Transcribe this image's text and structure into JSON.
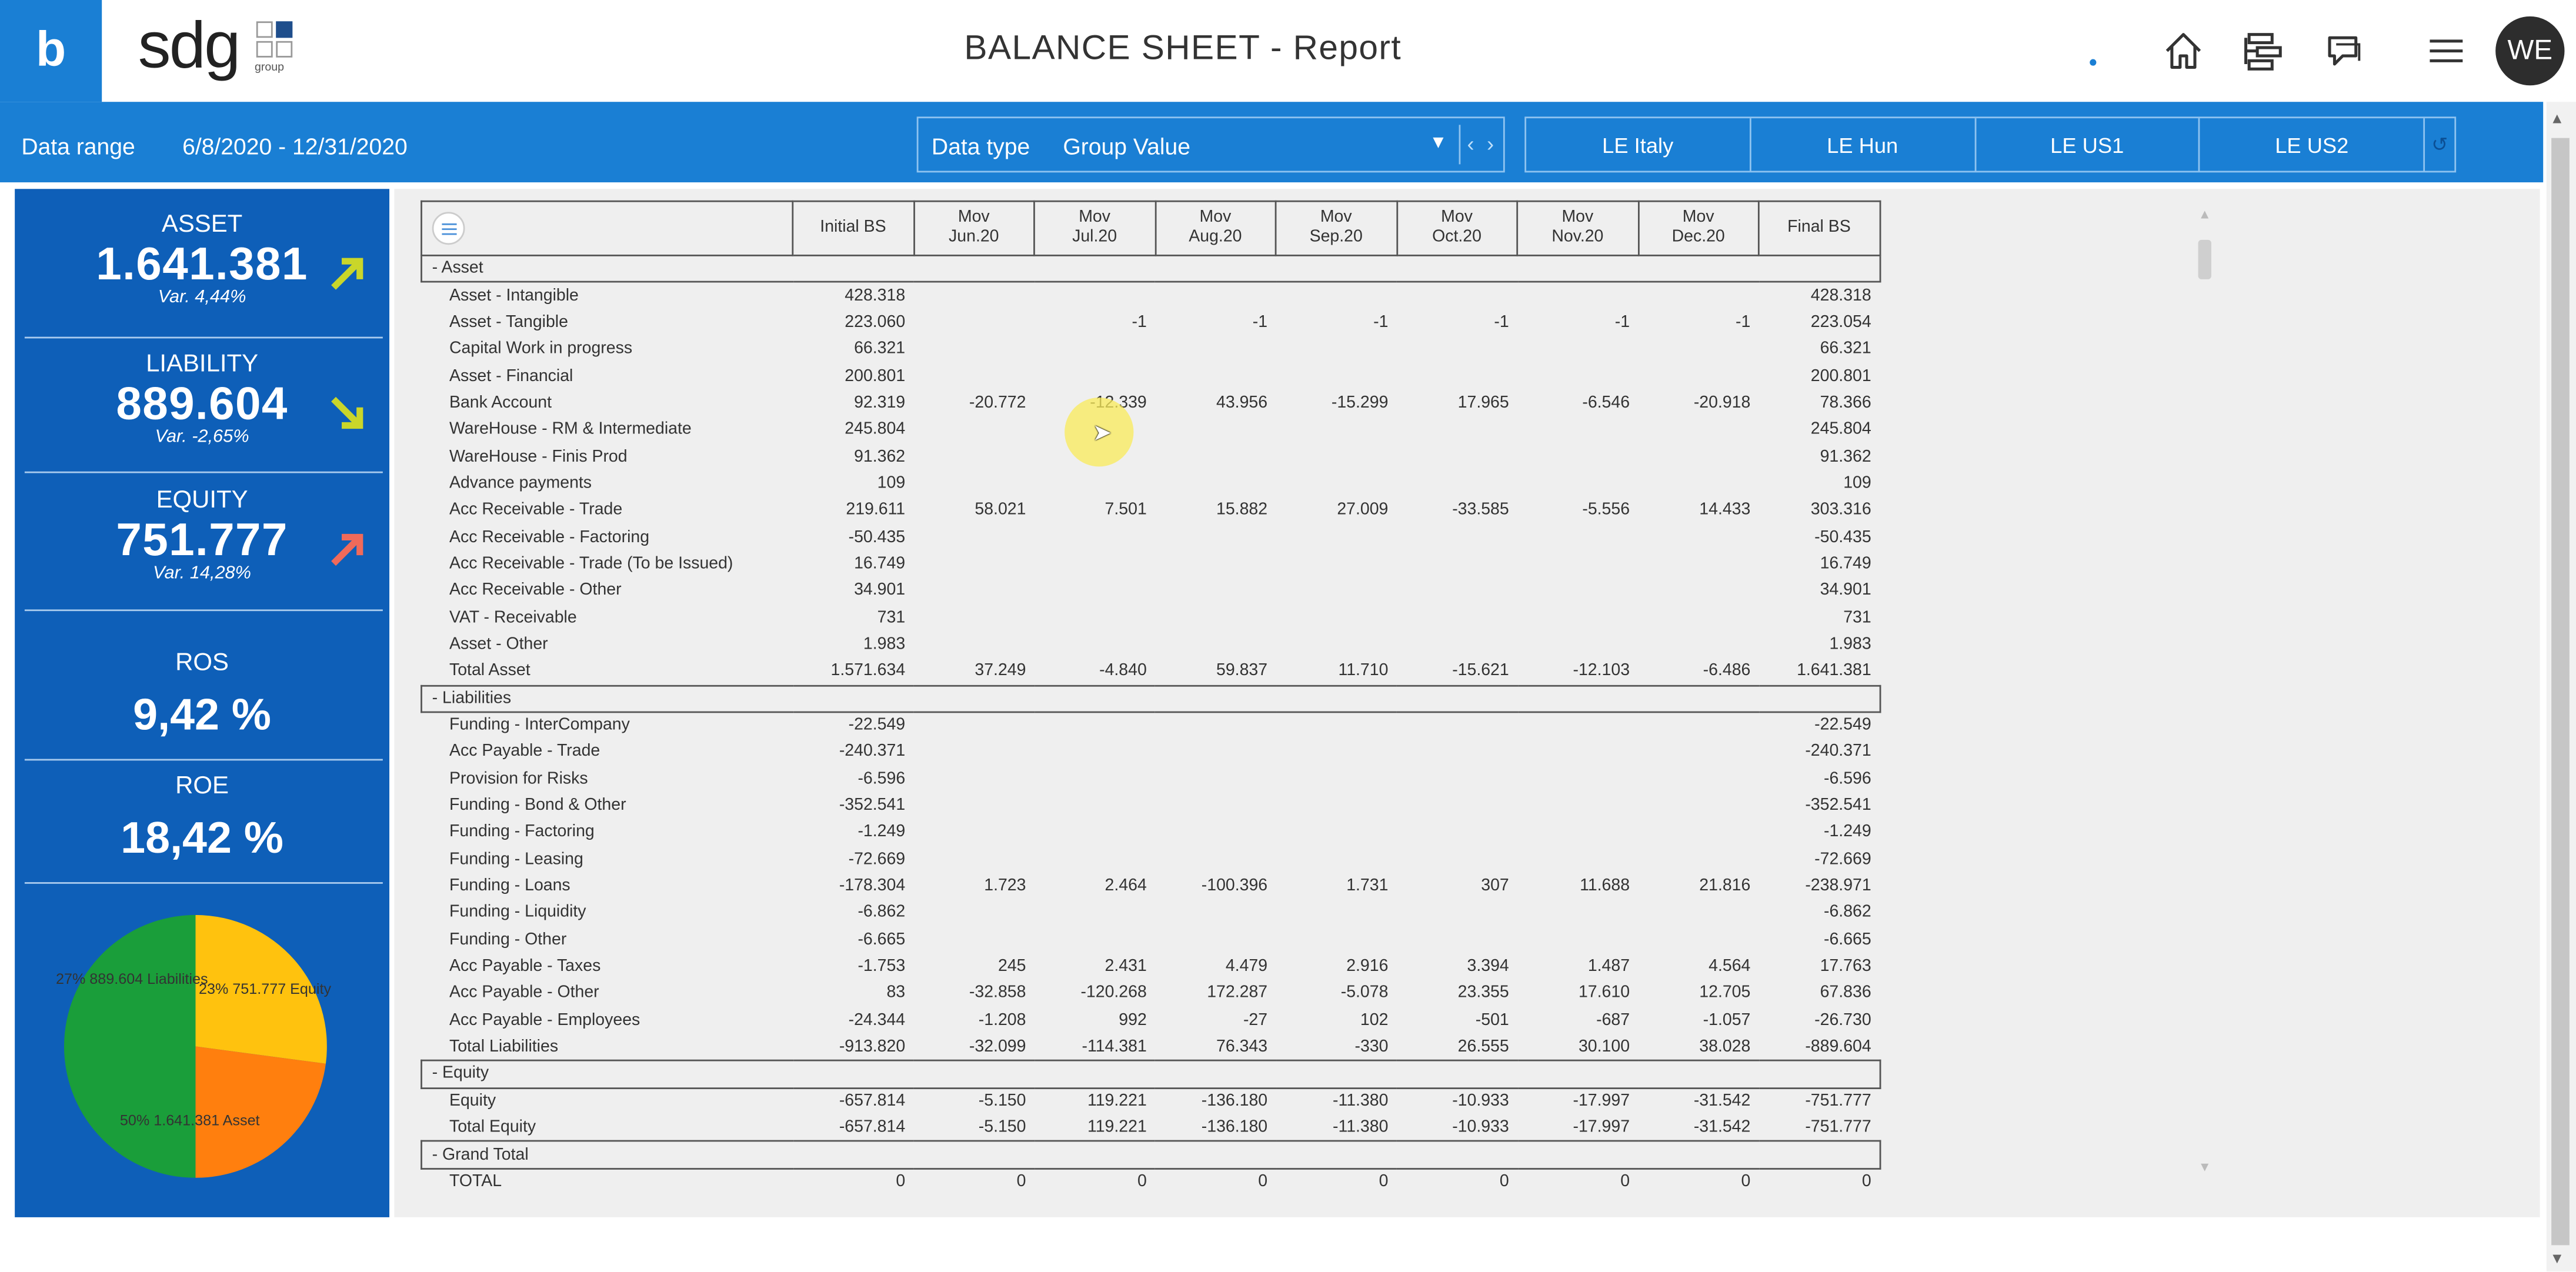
{
  "header": {
    "logo_letter": "b",
    "brand": "sdg",
    "brand_sub": "group",
    "title": "BALANCE SHEET - Report",
    "avatar_initials": "WE"
  },
  "filters": {
    "range_label": "Data range",
    "range_value": "6/8/2020  -  12/31/2020",
    "data_type_label": "Data type",
    "data_type_value": "Group Value",
    "entities": [
      "LE Italy",
      "LE Hun",
      "LE US1",
      "LE US2"
    ]
  },
  "kpis": {
    "asset": {
      "title": "ASSET",
      "value": "1.641.381",
      "var": "Var.  4,44%",
      "arrow_color": "#c9d62a"
    },
    "liability": {
      "title": "LIABILITY",
      "value": "889.604",
      "var": "Var.  -2,65%",
      "arrow_color": "#c9d62a"
    },
    "equity": {
      "title": "EQUITY",
      "value": "751.777",
      "var": "Var.  14,28%",
      "arrow_color": "#f06a5a"
    },
    "ros": {
      "title": "ROS",
      "value": "9,42 %"
    },
    "roe": {
      "title": "ROE",
      "value": "18,42 %"
    }
  },
  "pie": {
    "slices": [
      {
        "label": "27% 889.604 Liabilities",
        "value": 889604,
        "color": "#ffc20e"
      },
      {
        "label": "23% 751.777 Equity",
        "value": 751777,
        "color": "#ff7f0e"
      },
      {
        "label": "50% 1.641.381 Asset",
        "value": 1641381,
        "color": "#1a9e3a"
      }
    ]
  },
  "table": {
    "columns": [
      "Initial BS",
      "Mov\nJun.20",
      "Mov\nJul.20",
      "Mov\nAug.20",
      "Mov\nSep.20",
      "Mov\nOct.20",
      "Mov\nNov.20",
      "Mov\nDec.20",
      "Final BS"
    ],
    "sections": [
      {
        "name": "- Asset",
        "rows": [
          {
            "label": "Asset - Intangible",
            "values": [
              "428.318",
              "",
              "",
              "",
              "",
              "",
              "",
              "",
              "428.318"
            ]
          },
          {
            "label": "Asset - Tangible",
            "values": [
              "223.060",
              "",
              "-1",
              "-1",
              "-1",
              "-1",
              "-1",
              "-1",
              "223.054"
            ]
          },
          {
            "label": "Capital Work in progress",
            "values": [
              "66.321",
              "",
              "",
              "",
              "",
              "",
              "",
              "",
              "66.321"
            ]
          },
          {
            "label": "Asset - Financial",
            "values": [
              "200.801",
              "",
              "",
              "",
              "",
              "",
              "",
              "",
              "200.801"
            ]
          },
          {
            "label": "Bank Account",
            "values": [
              "92.319",
              "-20.772",
              "-12.339",
              "43.956",
              "-15.299",
              "17.965",
              "-6.546",
              "-20.918",
              "78.366"
            ]
          },
          {
            "label": "WareHouse - RM & Intermediate",
            "values": [
              "245.804",
              "",
              "",
              "",
              "",
              "",
              "",
              "",
              "245.804"
            ]
          },
          {
            "label": "WareHouse - Finis Prod",
            "values": [
              "91.362",
              "",
              "",
              "",
              "",
              "",
              "",
              "",
              "91.362"
            ]
          },
          {
            "label": "Advance payments",
            "values": [
              "109",
              "",
              "",
              "",
              "",
              "",
              "",
              "",
              "109"
            ]
          },
          {
            "label": "Acc Receivable - Trade",
            "values": [
              "219.611",
              "58.021",
              "7.501",
              "15.882",
              "27.009",
              "-33.585",
              "-5.556",
              "14.433",
              "303.316"
            ]
          },
          {
            "label": "Acc Receivable - Factoring",
            "values": [
              "-50.435",
              "",
              "",
              "",
              "",
              "",
              "",
              "",
              "-50.435"
            ]
          },
          {
            "label": "Acc Receivable - Trade (To be Issued)",
            "values": [
              "16.749",
              "",
              "",
              "",
              "",
              "",
              "",
              "",
              "16.749"
            ]
          },
          {
            "label": "Acc Receivable - Other",
            "values": [
              "34.901",
              "",
              "",
              "",
              "",
              "",
              "",
              "",
              "34.901"
            ]
          },
          {
            "label": "VAT - Receivable",
            "values": [
              "731",
              "",
              "",
              "",
              "",
              "",
              "",
              "",
              "731"
            ]
          },
          {
            "label": "Asset - Other",
            "values": [
              "1.983",
              "",
              "",
              "",
              "",
              "",
              "",
              "",
              "1.983"
            ]
          }
        ],
        "total": {
          "label": "Total Asset",
          "values": [
            "1.571.634",
            "37.249",
            "-4.840",
            "59.837",
            "11.710",
            "-15.621",
            "-12.103",
            "-6.486",
            "1.641.381"
          ]
        }
      },
      {
        "name": "- Liabilities",
        "rows": [
          {
            "label": "Funding - InterCompany",
            "values": [
              "-22.549",
              "",
              "",
              "",
              "",
              "",
              "",
              "",
              "-22.549"
            ]
          },
          {
            "label": "Acc Payable - Trade",
            "values": [
              "-240.371",
              "",
              "",
              "",
              "",
              "",
              "",
              "",
              "-240.371"
            ]
          },
          {
            "label": "Provision for Risks",
            "values": [
              "-6.596",
              "",
              "",
              "",
              "",
              "",
              "",
              "",
              "-6.596"
            ]
          },
          {
            "label": "Funding - Bond & Other",
            "values": [
              "-352.541",
              "",
              "",
              "",
              "",
              "",
              "",
              "",
              "-352.541"
            ]
          },
          {
            "label": "Funding - Factoring",
            "values": [
              "-1.249",
              "",
              "",
              "",
              "",
              "",
              "",
              "",
              "-1.249"
            ]
          },
          {
            "label": "Funding - Leasing",
            "values": [
              "-72.669",
              "",
              "",
              "",
              "",
              "",
              "",
              "",
              "-72.669"
            ]
          },
          {
            "label": "Funding - Loans",
            "values": [
              "-178.304",
              "1.723",
              "2.464",
              "-100.396",
              "1.731",
              "307",
              "11.688",
              "21.816",
              "-238.971"
            ]
          },
          {
            "label": "Funding - Liquidity",
            "values": [
              "-6.862",
              "",
              "",
              "",
              "",
              "",
              "",
              "",
              "-6.862"
            ]
          },
          {
            "label": "Funding - Other",
            "values": [
              "-6.665",
              "",
              "",
              "",
              "",
              "",
              "",
              "",
              "-6.665"
            ]
          },
          {
            "label": "Acc Payable - Taxes",
            "values": [
              "-1.753",
              "245",
              "2.431",
              "4.479",
              "2.916",
              "3.394",
              "1.487",
              "4.564",
              "17.763"
            ]
          },
          {
            "label": "Acc Payable - Other",
            "values": [
              "83",
              "-32.858",
              "-120.268",
              "172.287",
              "-5.078",
              "23.355",
              "17.610",
              "12.705",
              "67.836"
            ]
          },
          {
            "label": "Acc Payable - Employees",
            "values": [
              "-24.344",
              "-1.208",
              "992",
              "-27",
              "102",
              "-501",
              "-687",
              "-1.057",
              "-26.730"
            ]
          }
        ],
        "total": {
          "label": "Total Liabilities",
          "values": [
            "-913.820",
            "-32.099",
            "-114.381",
            "76.343",
            "-330",
            "26.555",
            "30.100",
            "38.028",
            "-889.604"
          ]
        }
      },
      {
        "name": "- Equity",
        "rows": [
          {
            "label": "Equity",
            "values": [
              "-657.814",
              "-5.150",
              "119.221",
              "-136.180",
              "-11.380",
              "-10.933",
              "-17.997",
              "-31.542",
              "-751.777"
            ]
          }
        ],
        "total": {
          "label": "Total Equity",
          "values": [
            "-657.814",
            "-5.150",
            "119.221",
            "-136.180",
            "-11.380",
            "-10.933",
            "-17.997",
            "-31.542",
            "-751.777"
          ]
        }
      },
      {
        "name": "- Grand Total",
        "rows": [],
        "total": {
          "label": "TOTAL",
          "values": [
            "0",
            "0",
            "0",
            "0",
            "0",
            "0",
            "0",
            "0",
            "0"
          ]
        }
      }
    ]
  }
}
